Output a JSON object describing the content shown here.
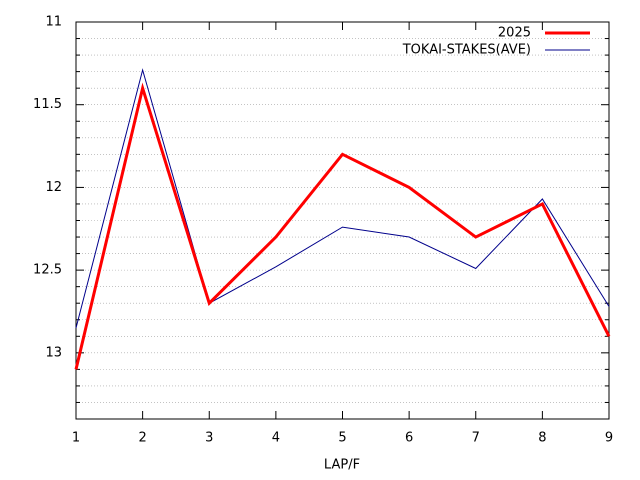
{
  "chart_data": {
    "type": "line",
    "x_label": "LAP/F",
    "x": [
      1,
      2,
      3,
      4,
      5,
      6,
      7,
      8,
      9
    ],
    "xlim": [
      1,
      9
    ],
    "xticks": [
      1,
      2,
      3,
      4,
      5,
      6,
      7,
      8,
      9
    ],
    "ylim": [
      13.4,
      11
    ],
    "yticks": [
      11,
      11.5,
      12,
      12.5,
      13
    ],
    "y_reversed": true,
    "grid": true,
    "y_minor_ticks": [
      11.1,
      11.2,
      11.3,
      11.4,
      11.6,
      11.7,
      11.8,
      11.9,
      12.1,
      12.2,
      12.3,
      12.4,
      12.6,
      12.7,
      12.8,
      12.9,
      13.1,
      13.2,
      13.3
    ],
    "legend": "top-right",
    "series": [
      {
        "name": "2025",
        "color": "#ff0000",
        "width": 3,
        "values": [
          13.1,
          11.4,
          12.7,
          12.3,
          11.8,
          12.0,
          12.3,
          12.1,
          12.9
        ]
      },
      {
        "name": "TOKAI-STAKES(AVE)",
        "color": "#00008b",
        "width": 1,
        "values": [
          12.85,
          11.29,
          12.7,
          12.48,
          12.24,
          12.3,
          12.49,
          12.07,
          12.72
        ]
      }
    ]
  }
}
